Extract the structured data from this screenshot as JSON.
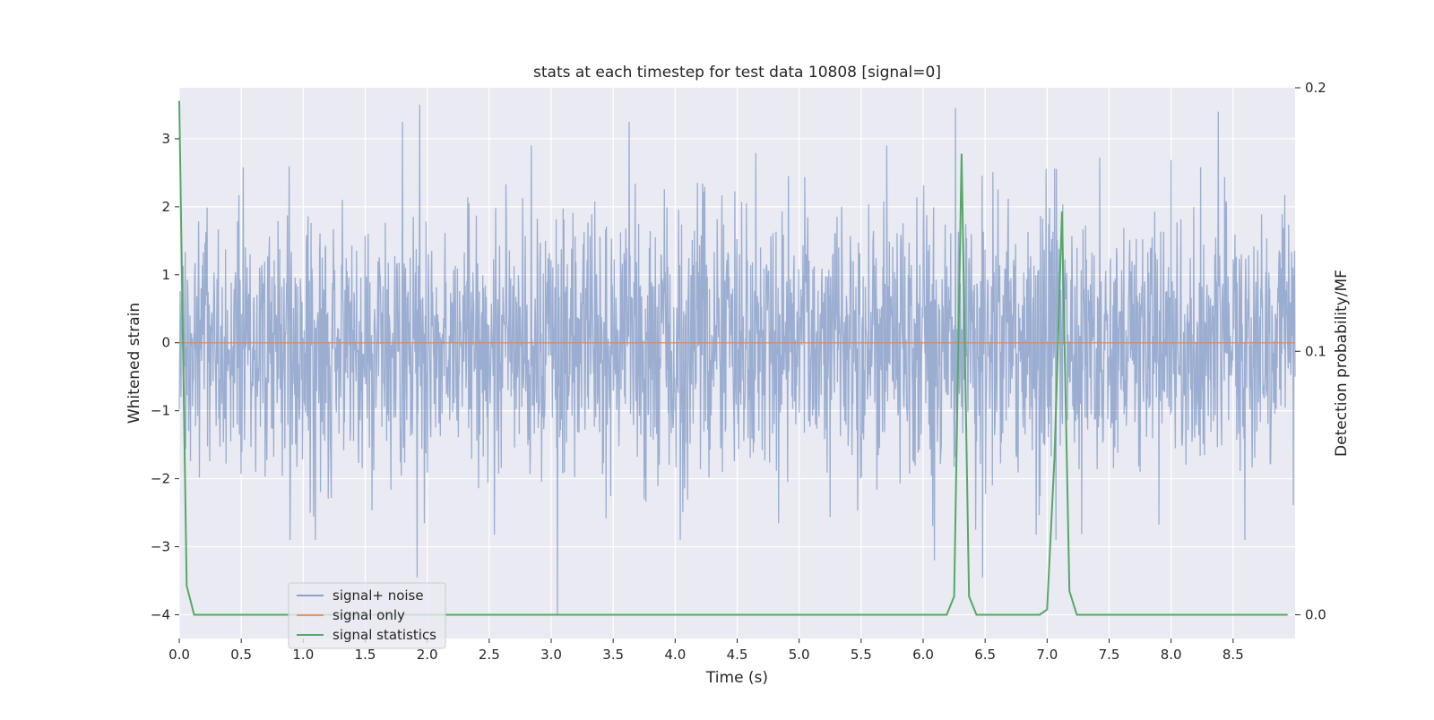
{
  "chart_data": {
    "type": "line",
    "title": "stats at each timestep for test data 10808 [signal=0]",
    "xlabel": "Time (s)",
    "ylabel": "Whitened strain",
    "ylabel_right": "Detection probability/MF",
    "xlim": [
      0.0,
      9.0
    ],
    "ylim": [
      -4.35,
      3.75
    ],
    "ylim_right": [
      -0.009,
      0.2
    ],
    "x_ticks": [
      "0.0",
      "0.5",
      "1.0",
      "1.5",
      "2.0",
      "2.5",
      "3.0",
      "3.5",
      "4.0",
      "4.5",
      "5.0",
      "5.5",
      "6.0",
      "6.5",
      "7.0",
      "7.5",
      "8.0",
      "8.5"
    ],
    "y_ticks": [
      "3",
      "2",
      "1",
      "0",
      "−1",
      "−2",
      "−3",
      "−4"
    ],
    "y_right_ticks": [
      "0.2",
      "0.1",
      "0.0"
    ],
    "grid": true,
    "legend_position": "lower-left",
    "series": [
      {
        "name": "signal+ noise",
        "axis": "left",
        "color": "#4c72b0",
        "style": "dense-noise",
        "x": [
          0.0,
          9.0
        ],
        "envelope_typical": [
          -1.3,
          1.3
        ],
        "peaks": [
          {
            "x": 1.94,
            "y": 3.5
          },
          {
            "x": 6.26,
            "y": 3.45
          },
          {
            "x": 8.38,
            "y": 3.4
          },
          {
            "x": 1.8,
            "y": 3.25
          },
          {
            "x": 3.63,
            "y": 3.25
          },
          {
            "x": 3.05,
            "y": -4.0
          },
          {
            "x": 1.92,
            "y": -3.45
          },
          {
            "x": 6.48,
            "y": -3.45
          },
          {
            "x": 6.09,
            "y": -3.2
          }
        ]
      },
      {
        "name": "signal only",
        "axis": "left",
        "color": "#dd8452",
        "x": [
          0.0,
          9.0
        ],
        "y": [
          0.0,
          0.0
        ]
      },
      {
        "name": "signal statistics",
        "axis": "right",
        "color": "#55a868",
        "x": [
          0.0,
          0.06,
          0.12,
          6.19,
          6.25,
          6.31,
          6.37,
          6.43,
          6.94,
          7.0,
          7.06,
          7.12,
          7.18,
          7.24,
          8.94
        ],
        "y": [
          0.195,
          0.011,
          0.0,
          0.0,
          0.007,
          0.175,
          0.007,
          0.0,
          0.0,
          0.002,
          0.06,
          0.153,
          0.009,
          0.0,
          0.0
        ]
      }
    ]
  }
}
